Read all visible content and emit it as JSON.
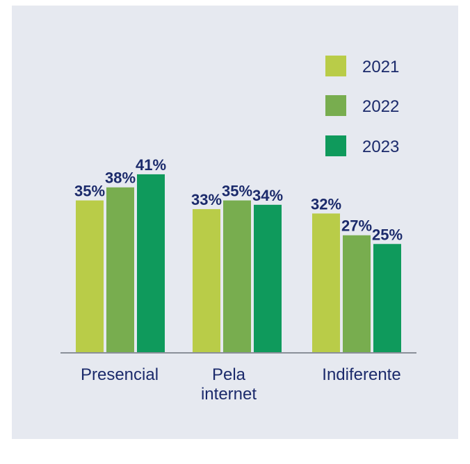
{
  "chart_data": {
    "type": "bar",
    "categories": [
      "Presencial",
      "Pela internet",
      "Indiferente"
    ],
    "series": [
      {
        "name": "2021",
        "values": [
          35,
          33,
          32
        ],
        "color": "#b9cc48"
      },
      {
        "name": "2022",
        "values": [
          38,
          35,
          27
        ],
        "color": "#78ad4f"
      },
      {
        "name": "2023",
        "values": [
          41,
          34,
          25
        ],
        "color": "#0f9a5c"
      }
    ],
    "value_suffix": "%",
    "title": "",
    "xlabel": "",
    "ylabel": "",
    "ylim": [
      0,
      41
    ],
    "grid": false,
    "legend_position": "top-right"
  },
  "colors": {
    "background": "#e6e9f0",
    "text": "#1b2a6b",
    "axis": "#8a8f99"
  }
}
